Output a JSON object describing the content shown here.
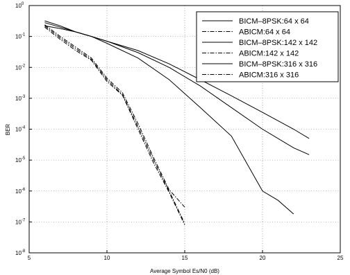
{
  "chart_data": {
    "type": "line",
    "title": "",
    "xlabel": "Average Symbol Es/N0 (dB)",
    "ylabel": "BER",
    "xlim": [
      5,
      25
    ],
    "ylim": [
      1e-08,
      1
    ],
    "yscale": "log",
    "grid": true,
    "legend_position": "top-right",
    "x_ticks": [
      "5",
      "10",
      "15",
      "20",
      "25"
    ],
    "y_ticks": [
      "10^0",
      "10^-1",
      "10^-2",
      "10^-3",
      "10^-4",
      "10^-5",
      "10^-6",
      "10^-7",
      "10^-8"
    ],
    "series": [
      {
        "name": "BICM–8PSK:64 x 64",
        "style": "solid",
        "x": [
          6,
          7,
          8,
          9,
          10,
          12,
          14,
          16,
          18,
          20,
          22,
          23
        ],
        "y": [
          0.22,
          0.18,
          0.14,
          0.1,
          0.07,
          0.035,
          0.013,
          0.004,
          0.0012,
          0.00035,
          0.0001,
          5e-05
        ]
      },
      {
        "name": "ABICM:64 x 64",
        "style": "dashdot",
        "x": [
          6,
          7,
          8,
          9,
          10,
          11,
          12,
          13,
          14,
          15
        ],
        "y": [
          0.2,
          0.08,
          0.035,
          0.017,
          0.0035,
          0.00125,
          0.0001,
          8e-06,
          9e-07,
          8e-08
        ]
      },
      {
        "name": "BICM–8PSK:142 x 142",
        "style": "solid",
        "x": [
          6,
          7,
          8,
          9,
          10,
          12,
          14,
          16,
          18,
          20,
          22,
          23
        ],
        "y": [
          0.28,
          0.2,
          0.14,
          0.1,
          0.07,
          0.03,
          0.01,
          0.0025,
          0.0005,
          0.0001,
          2.5e-05,
          1.5e-05
        ]
      },
      {
        "name": "ABICM:142 x 142",
        "style": "dashdot",
        "x": [
          6,
          7,
          8,
          9,
          10,
          11,
          12,
          13,
          14,
          15
        ],
        "y": [
          0.22,
          0.09,
          0.04,
          0.018,
          0.004,
          0.0013,
          0.00012,
          1e-05,
          1e-06,
          9e-08
        ]
      },
      {
        "name": "BICM–8PSK:316 x 316",
        "style": "solid",
        "x": [
          6,
          7,
          8,
          9,
          10,
          12,
          14,
          16,
          18,
          20,
          21,
          22
        ],
        "y": [
          0.32,
          0.22,
          0.14,
          0.1,
          0.06,
          0.02,
          0.004,
          0.0005,
          6e-05,
          1e-06,
          5e-07,
          1.8e-07
        ]
      },
      {
        "name": "ABICM:316 x 316",
        "style": "dashdot",
        "x": [
          6,
          7,
          8,
          9,
          10,
          11,
          12,
          13,
          14,
          15
        ],
        "y": [
          0.24,
          0.1,
          0.045,
          0.02,
          0.0045,
          0.0015,
          0.00015,
          1.2e-05,
          1.1e-06,
          3e-07
        ]
      }
    ]
  }
}
